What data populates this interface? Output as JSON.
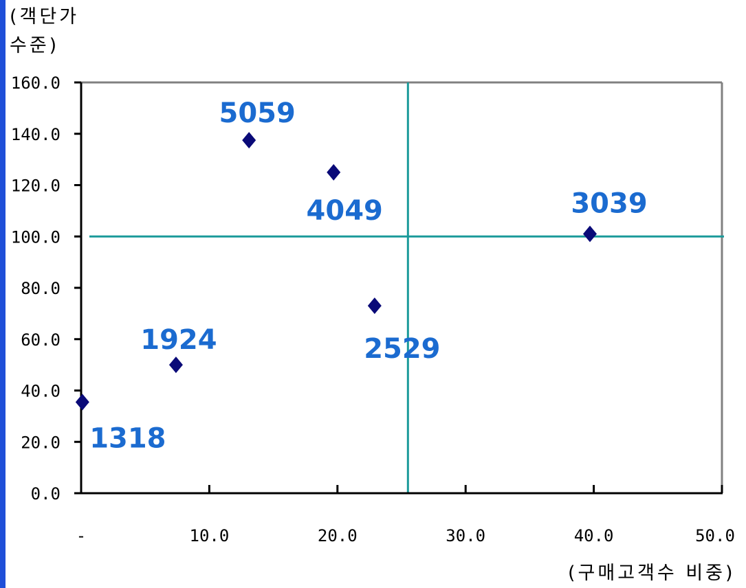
{
  "chart_data": {
    "type": "scatter",
    "title": "",
    "xlabel": "(구매고객수 비중)",
    "ylabel": "(객단가\n수준)",
    "xlim": [
      0,
      50
    ],
    "ylim": [
      0,
      160
    ],
    "xticks": [
      "-",
      "10.0",
      "20.0",
      "30.0",
      "40.0",
      "50.0"
    ],
    "xtick_values": [
      0,
      10,
      20,
      30,
      40,
      50
    ],
    "yticks": [
      "0.0",
      "20.0",
      "40.0",
      "60.0",
      "80.0",
      "100.0",
      "120.0",
      "140.0",
      "160.0"
    ],
    "ytick_values": [
      0,
      20,
      40,
      60,
      80,
      100,
      120,
      140,
      160
    ],
    "grid": false,
    "points": [
      {
        "label": "1318",
        "x": 0.1,
        "y": 35.5
      },
      {
        "label": "1924",
        "x": 7.4,
        "y": 50.0
      },
      {
        "label": "5059",
        "x": 13.1,
        "y": 137.5
      },
      {
        "label": "4049",
        "x": 19.7,
        "y": 125.0
      },
      {
        "label": "2529",
        "x": 22.9,
        "y": 73.0
      },
      {
        "label": "3039",
        "x": 39.7,
        "y": 101.0
      }
    ],
    "reference_lines": {
      "vertical_x": 25.5,
      "horizontal_y": 100.0
    },
    "colors": {
      "marker": "#0a0a78",
      "label": "#1b6bd0",
      "reference": "#1a9a9a",
      "axis": "#808080"
    }
  }
}
